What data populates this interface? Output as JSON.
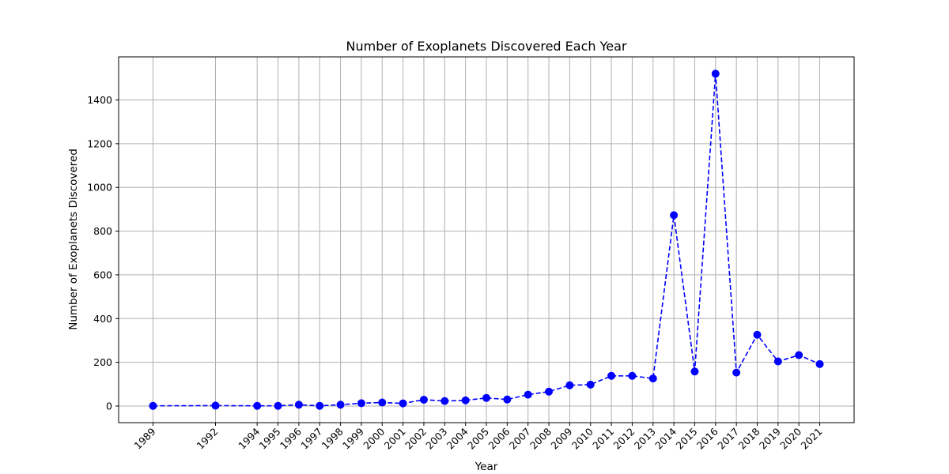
{
  "chart_data": {
    "type": "line",
    "title": "Number of Exoplanets Discovered Each Year",
    "xlabel": "Year",
    "ylabel": "Number of Exoplanets Discovered",
    "x": [
      1989,
      1992,
      1994,
      1995,
      1996,
      1997,
      1998,
      1999,
      2000,
      2001,
      2002,
      2003,
      2004,
      2005,
      2006,
      2007,
      2008,
      2009,
      2010,
      2011,
      2012,
      2013,
      2014,
      2015,
      2016,
      2017,
      2018,
      2019,
      2020,
      2021
    ],
    "series": [
      {
        "values": [
          1,
          2,
          1,
          1,
          6,
          1,
          6,
          13,
          16,
          12,
          29,
          23,
          26,
          37,
          30,
          52,
          66,
          95,
          98,
          138,
          138,
          126,
          873,
          158,
          1520,
          153,
          326,
          204,
          233,
          192
        ],
        "color": "#0000ff",
        "line_style": "dashed",
        "marker": "circle"
      }
    ],
    "xlim": [
      1987.35,
      2022.65
    ],
    "ylim": [
      -76,
      1597
    ],
    "yticks": [
      0,
      200,
      400,
      600,
      800,
      1000,
      1200,
      1400
    ],
    "xtick_labels": [
      "1989",
      "1992",
      "1994",
      "1995",
      "1996",
      "1997",
      "1998",
      "1999",
      "2000",
      "2001",
      "2002",
      "2003",
      "2004",
      "2005",
      "2006",
      "2007",
      "2008",
      "2009",
      "2010",
      "2011",
      "2012",
      "2013",
      "2014",
      "2015",
      "2016",
      "2017",
      "2018",
      "2019",
      "2020",
      "2021"
    ],
    "ytick_labels": [
      "0",
      "200",
      "400",
      "600",
      "800",
      "1000",
      "1200",
      "1400"
    ],
    "grid": true,
    "grid_color": "#b0b0b0"
  }
}
